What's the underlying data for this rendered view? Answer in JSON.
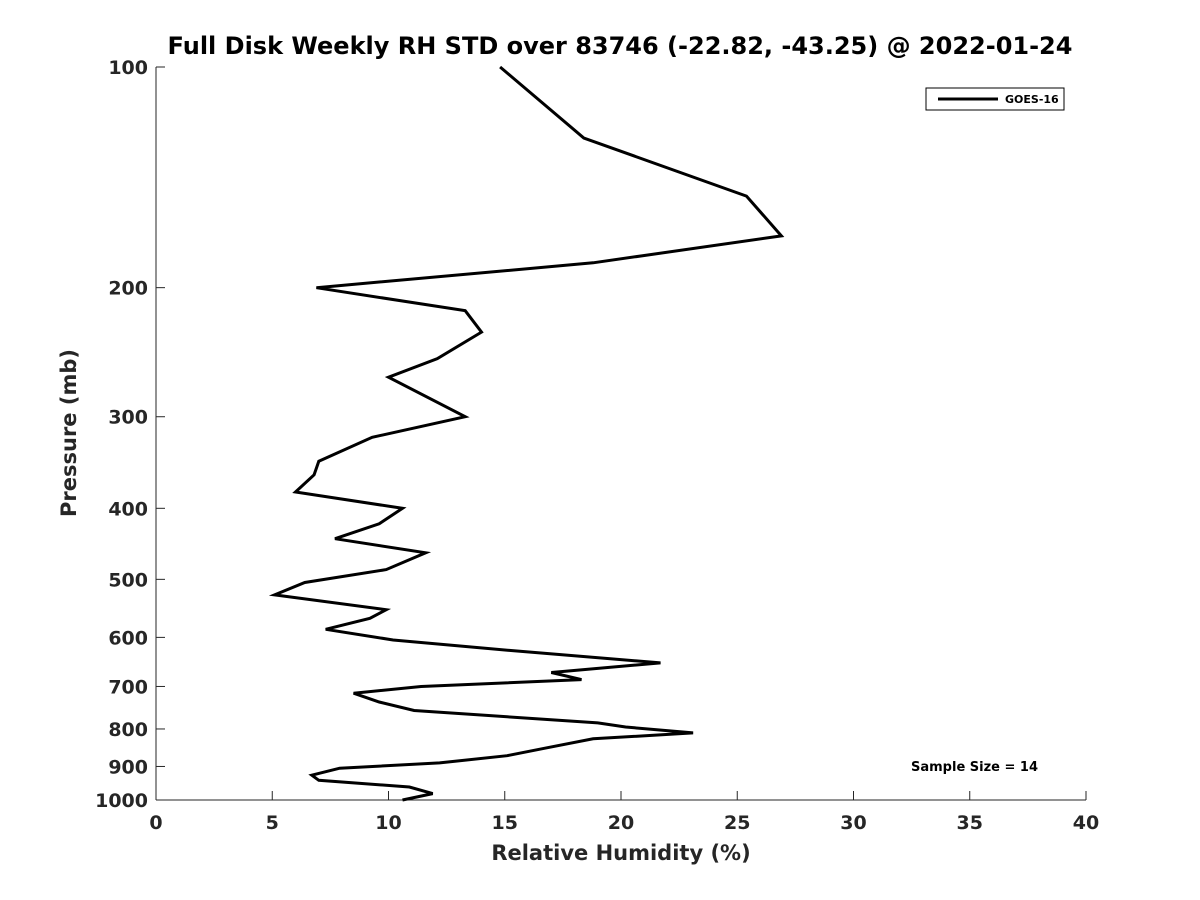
{
  "chart_data": {
    "type": "line",
    "title": "Full Disk Weekly RH STD over 83746 (-22.82, -43.25) @ 2022-01-24",
    "xlabel": "Relative Humidity (%)",
    "ylabel": "Pressure (mb)",
    "xlim": [
      0,
      40
    ],
    "ylim": [
      100,
      1000
    ],
    "y_scale": "log",
    "y_reversed": true,
    "x_ticks": [
      0,
      5,
      10,
      15,
      20,
      25,
      30,
      35,
      40
    ],
    "y_ticks": [
      100,
      200,
      300,
      400,
      500,
      600,
      700,
      800,
      900,
      1000
    ],
    "legend_position": "top-right",
    "line_color": "#000000",
    "annotation": "Sample Size = 14",
    "series": [
      {
        "name": "GOES-16",
        "points": [
          [
            14.8,
            100
          ],
          [
            18.4,
            125
          ],
          [
            25.4,
            150
          ],
          [
            26.9,
            170
          ],
          [
            18.8,
            185
          ],
          [
            6.9,
            200
          ],
          [
            13.3,
            215
          ],
          [
            14.0,
            230
          ],
          [
            12.1,
            250
          ],
          [
            10.0,
            265
          ],
          [
            13.3,
            300
          ],
          [
            9.3,
            320
          ],
          [
            7.0,
            345
          ],
          [
            6.8,
            360
          ],
          [
            6.0,
            380
          ],
          [
            10.6,
            400
          ],
          [
            9.6,
            420
          ],
          [
            7.7,
            440
          ],
          [
            11.6,
            460
          ],
          [
            9.9,
            485
          ],
          [
            6.4,
            505
          ],
          [
            5.1,
            525
          ],
          [
            9.9,
            550
          ],
          [
            9.2,
            565
          ],
          [
            7.3,
            585
          ],
          [
            10.2,
            605
          ],
          [
            15.2,
            625
          ],
          [
            21.7,
            650
          ],
          [
            17.0,
            670
          ],
          [
            18.3,
            685
          ],
          [
            11.4,
            700
          ],
          [
            8.5,
            715
          ],
          [
            9.6,
            735
          ],
          [
            11.1,
            755
          ],
          [
            19.0,
            785
          ],
          [
            20.2,
            795
          ],
          [
            23.1,
            810
          ],
          [
            18.8,
            825
          ],
          [
            16.7,
            850
          ],
          [
            15.1,
            870
          ],
          [
            12.2,
            890
          ],
          [
            7.9,
            905
          ],
          [
            6.7,
            925
          ],
          [
            7.0,
            940
          ],
          [
            10.9,
            960
          ],
          [
            11.9,
            980
          ],
          [
            10.6,
            1000
          ]
        ]
      }
    ]
  }
}
